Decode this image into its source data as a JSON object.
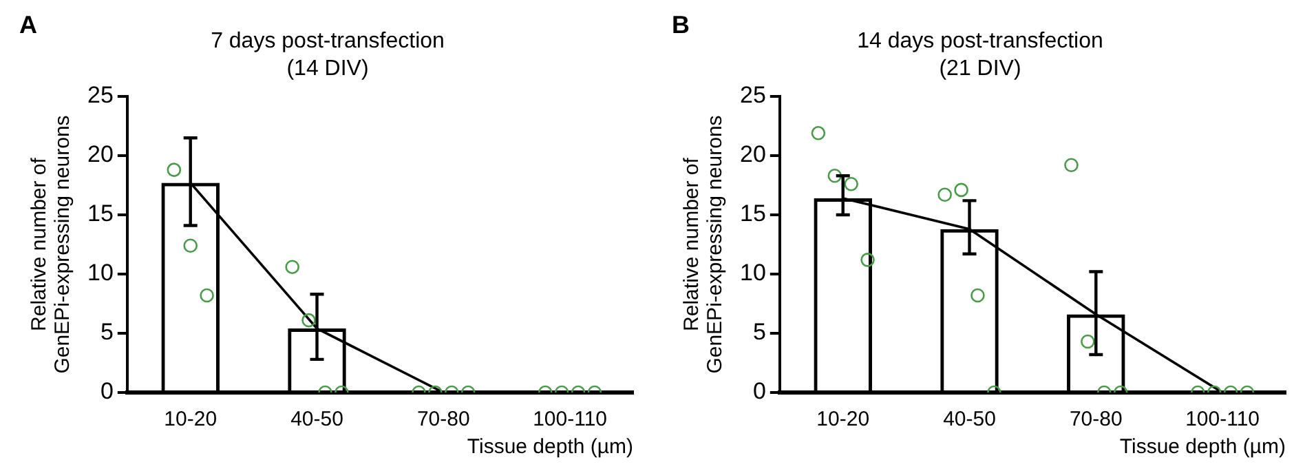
{
  "chart_data": [
    {
      "type": "bar",
      "title": "7 days post-transfection\n(14 DIV)",
      "xlabel": "Tissue depth (µm)",
      "ylabel": "Relative number of\nGenEPi-expressing neurons",
      "annotations": [
        "A"
      ],
      "categories": [
        "10-20",
        "40-50",
        "70-80",
        "100-110"
      ],
      "ylim": [
        0,
        25
      ],
      "yticks": [
        0,
        5,
        10,
        15,
        20,
        25
      ],
      "grid": false,
      "legend": false,
      "series": [
        {
          "color": "#000000",
          "values": [
            17.7,
            5.4,
            0,
            0
          ],
          "errors": [
            [
              14.1,
              21.5
            ],
            [
              2.8,
              8.3
            ],
            null,
            null
          ]
        },
        {
          "type": "line",
          "color": "#000000",
          "marker": "none",
          "values": [
            17.7,
            5.4,
            0,
            0
          ]
        },
        {
          "type": "scatter",
          "color": "#4a9a4a",
          "marker": "circle",
          "x": [
            "10-20",
            "10-20",
            "10-20",
            "40-50",
            "40-50",
            "40-50",
            "40-50",
            "70-80",
            "70-80",
            "70-80",
            "70-80",
            "100-110",
            "100-110",
            "100-110",
            "100-110"
          ],
          "values": [
            18.8,
            12.4,
            8.2,
            10.6,
            6.1,
            0,
            0,
            0,
            0,
            0,
            0,
            0,
            0,
            0,
            0
          ]
        }
      ]
    },
    {
      "type": "bar",
      "title": "14 days post-transfection\n(21 DIV)",
      "xlabel": "Tissue depth (µm)",
      "ylabel": "Relative number of\nGenEPi-expressing neurons",
      "annotations": [
        "B"
      ],
      "categories": [
        "10-20",
        "40-50",
        "70-80",
        "100-110"
      ],
      "ylim": [
        0,
        25
      ],
      "yticks": [
        0,
        5,
        10,
        15,
        20,
        25
      ],
      "grid": false,
      "legend": false,
      "series": [
        {
          "color": "#000000",
          "values": [
            16.4,
            13.8,
            6.6,
            0
          ],
          "errors": [
            [
              15.0,
              18.3
            ],
            [
              11.7,
              16.2
            ],
            [
              3.2,
              10.2
            ],
            null
          ]
        },
        {
          "type": "line",
          "color": "#000000",
          "marker": "none",
          "values": [
            16.4,
            13.8,
            6.6,
            0
          ]
        },
        {
          "type": "scatter",
          "color": "#4a9a4a",
          "marker": "circle",
          "x": [
            "10-20",
            "10-20",
            "10-20",
            "10-20",
            "40-50",
            "40-50",
            "40-50",
            "40-50",
            "70-80",
            "70-80",
            "70-80",
            "70-80",
            "100-110",
            "100-110",
            "100-110",
            "100-110"
          ],
          "values": [
            21.9,
            18.3,
            17.6,
            11.2,
            16.7,
            17.1,
            8.2,
            0,
            19.2,
            4.3,
            0,
            0,
            0,
            0,
            0,
            0
          ]
        }
      ]
    }
  ]
}
